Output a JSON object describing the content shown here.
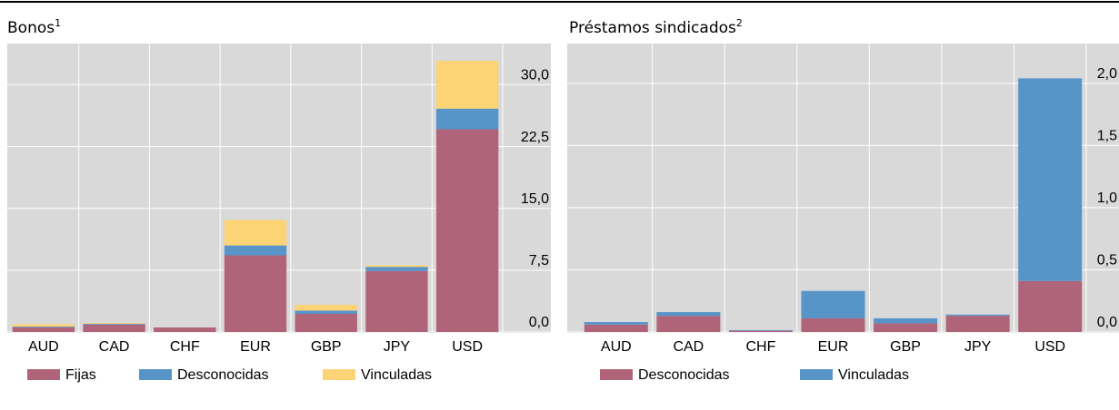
{
  "chart_data": [
    {
      "type": "stacked-bar",
      "title": "Bonos",
      "title_note": "1",
      "categories": [
        "AUD",
        "CAD",
        "CHF",
        "EUR",
        "GBP",
        "JPY",
        "USD"
      ],
      "series": [
        {
          "name": "Fijas",
          "color": "#b0647a",
          "values": [
            0.55,
            0.9,
            0.55,
            9.3,
            2.2,
            7.4,
            24.6
          ]
        },
        {
          "name": "Desconocidas",
          "color": "#5794c8",
          "values": [
            0.1,
            0.1,
            0,
            1.2,
            0.4,
            0.5,
            2.5
          ]
        },
        {
          "name": "Vinculadas",
          "color": "#fcd375",
          "values": [
            0.3,
            0.1,
            0,
            3.1,
            0.7,
            0.2,
            5.8
          ]
        }
      ],
      "ylim": [
        0,
        35
      ],
      "yticks": [
        {
          "value": 0,
          "label": "0,0"
        },
        {
          "value": 7.5,
          "label": "7,5"
        },
        {
          "value": 15,
          "label": "15,0"
        },
        {
          "value": 22.5,
          "label": "22,5"
        },
        {
          "value": 30,
          "label": "30,0"
        }
      ],
      "grid": true
    },
    {
      "type": "stacked-bar",
      "title": "Préstamos sindicados",
      "title_note": "2",
      "categories": [
        "AUD",
        "CAD",
        "CHF",
        "EUR",
        "GBP",
        "JPY",
        "USD"
      ],
      "series": [
        {
          "name": "Desconocidas",
          "color": "#b0647a",
          "values": [
            0.06,
            0.13,
            0.01,
            0.11,
            0.07,
            0.13,
            0.41
          ]
        },
        {
          "name": "Vinculadas",
          "color": "#5794c8",
          "values": [
            0.02,
            0.03,
            0.005,
            0.22,
            0.04,
            0.01,
            1.63
          ]
        }
      ],
      "ylim": [
        0,
        2.32
      ],
      "yticks": [
        {
          "value": 0,
          "label": "0,0"
        },
        {
          "value": 0.5,
          "label": "0,5"
        },
        {
          "value": 1,
          "label": "1,0"
        },
        {
          "value": 1.5,
          "label": "1,5"
        },
        {
          "value": 2,
          "label": "2,0"
        }
      ],
      "grid": true
    }
  ]
}
